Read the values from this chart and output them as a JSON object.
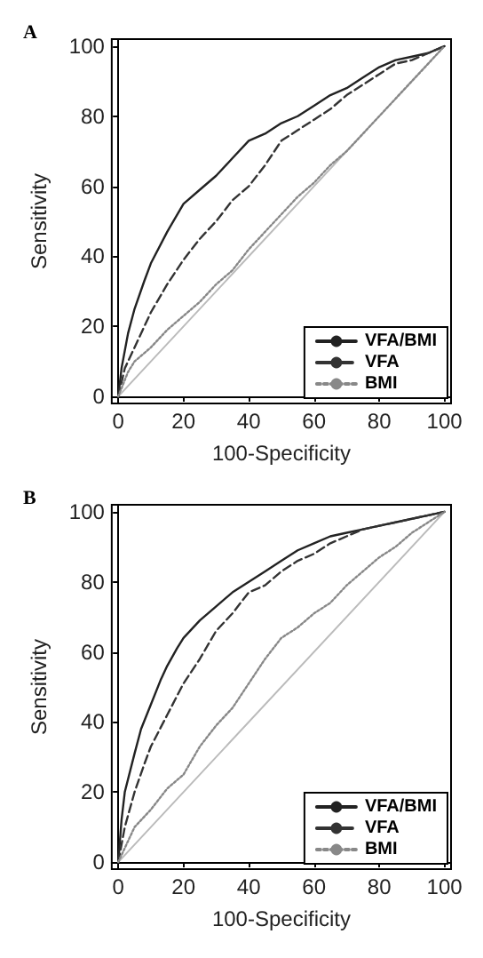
{
  "chart_data": [
    {
      "type": "line",
      "title": "A",
      "xlabel": "100-Specificity",
      "ylabel": "Sensitivity",
      "xlim": [
        -2,
        102
      ],
      "ylim": [
        -2,
        102
      ],
      "xticks": [
        0,
        20,
        40,
        60,
        80,
        100
      ],
      "yticks": [
        0,
        20,
        40,
        60,
        80,
        100
      ],
      "legend": "bottom right",
      "marker": "none",
      "series": [
        {
          "name": "VFA/BMI",
          "color": "#222222",
          "line_style": "solid",
          "x": [
            0,
            1,
            3,
            5,
            8,
            10,
            15,
            20,
            25,
            30,
            35,
            40,
            45,
            50,
            55,
            60,
            65,
            70,
            75,
            80,
            85,
            90,
            95,
            100
          ],
          "values": [
            0,
            8,
            18,
            25,
            33,
            38,
            47,
            55,
            59,
            63,
            68,
            73,
            75,
            78,
            80,
            83,
            86,
            88,
            91,
            94,
            96,
            97,
            98,
            100
          ]
        },
        {
          "name": "VFA",
          "color": "#333333",
          "line_style": "dashed",
          "x": [
            0,
            2,
            5,
            8,
            10,
            15,
            20,
            25,
            30,
            35,
            40,
            45,
            50,
            55,
            60,
            65,
            70,
            75,
            80,
            85,
            90,
            95,
            100
          ],
          "values": [
            0,
            8,
            14,
            20,
            24,
            32,
            39,
            45,
            50,
            56,
            60,
            66,
            73,
            76,
            79,
            82,
            86,
            89,
            92,
            95,
            96,
            98,
            100
          ]
        },
        {
          "name": "BMI",
          "color": "#888888",
          "line_style": "dotted",
          "x": [
            0,
            3,
            5,
            10,
            15,
            20,
            25,
            30,
            35,
            40,
            45,
            50,
            55,
            60,
            65,
            70,
            75,
            80,
            85,
            90,
            95,
            100
          ],
          "values": [
            0,
            7,
            10,
            14,
            19,
            23,
            27,
            32,
            36,
            42,
            47,
            52,
            57,
            61,
            66,
            70,
            75,
            80,
            85,
            90,
            95,
            100
          ]
        },
        {
          "color": "#bbbbbb",
          "line_style": "solid",
          "x": [
            0,
            100
          ],
          "values": [
            0,
            100
          ]
        }
      ]
    },
    {
      "type": "line",
      "title": "B",
      "xlabel": "100-Specificity",
      "ylabel": "Sensitivity",
      "xlim": [
        -2,
        102
      ],
      "ylim": [
        -2,
        102
      ],
      "xticks": [
        0,
        20,
        40,
        60,
        80,
        100
      ],
      "yticks": [
        0,
        20,
        40,
        60,
        80,
        100
      ],
      "legend": "bottom right",
      "marker": "none",
      "series": [
        {
          "name": "VFA/BMI",
          "color": "#222222",
          "line_style": "solid",
          "x": [
            0,
            1,
            2,
            5,
            7,
            10,
            13,
            15,
            18,
            20,
            25,
            30,
            35,
            40,
            45,
            50,
            55,
            60,
            65,
            70,
            75,
            80,
            85,
            90,
            95,
            100
          ],
          "values": [
            0,
            12,
            20,
            31,
            38,
            45,
            52,
            56,
            61,
            64,
            69,
            73,
            77,
            80,
            83,
            86,
            89,
            91,
            93,
            94,
            95,
            96,
            97,
            98,
            99,
            100
          ]
        },
        {
          "name": "VFA",
          "color": "#333333",
          "line_style": "dashed",
          "x": [
            0,
            2,
            5,
            8,
            10,
            15,
            20,
            25,
            30,
            35,
            40,
            45,
            50,
            55,
            60,
            65,
            70,
            75,
            80,
            85,
            90,
            95,
            100
          ],
          "values": [
            0,
            10,
            20,
            28,
            33,
            42,
            51,
            58,
            66,
            71,
            77,
            79,
            83,
            86,
            88,
            91,
            93,
            95,
            96,
            97,
            98,
            99,
            100
          ]
        },
        {
          "name": "BMI",
          "color": "#888888",
          "line_style": "dotted",
          "x": [
            0,
            3,
            5,
            10,
            15,
            20,
            25,
            30,
            35,
            40,
            45,
            50,
            55,
            60,
            65,
            70,
            75,
            80,
            85,
            90,
            95,
            100
          ],
          "values": [
            0,
            6,
            10,
            15,
            21,
            25,
            33,
            39,
            44,
            51,
            58,
            64,
            67,
            71,
            74,
            79,
            83,
            87,
            90,
            94,
            97,
            100
          ]
        },
        {
          "color": "#bbbbbb",
          "line_style": "solid",
          "x": [
            0,
            100
          ],
          "values": [
            0,
            100
          ]
        }
      ]
    }
  ]
}
